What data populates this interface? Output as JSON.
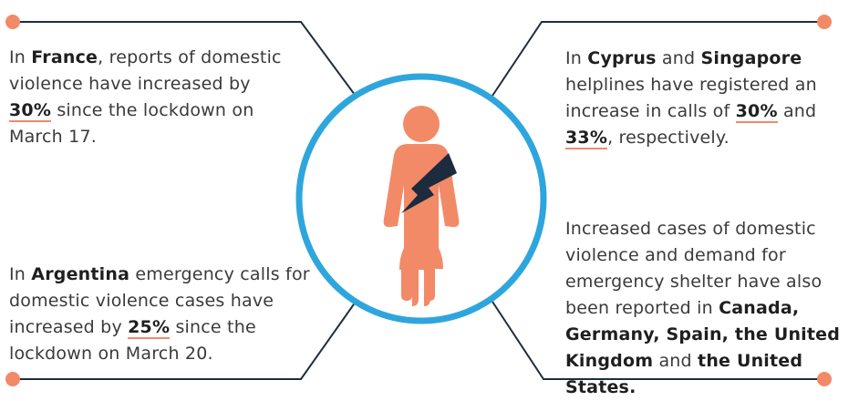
{
  "colors": {
    "accent": "#f28a67",
    "ring": "#2ea6dd",
    "bolt": "#1c2b3e",
    "line": "#1f2d3d"
  },
  "icons": {
    "center": "person-with-lightning-icon"
  },
  "top_left": {
    "p1": "In ",
    "country": "France",
    "p2": ", reports of domestic violence have increased by ",
    "pct": "30%",
    "p3": " since the lockdown on March 17."
  },
  "bottom_left": {
    "p1": "In ",
    "country": "Argentina",
    "p2": " emergency calls for domestic violence cases have increased by ",
    "pct": "25%",
    "p3": "  since the lockdown on March 20."
  },
  "top_right": {
    "p1": "In ",
    "country1": "Cyprus",
    "p2": " and ",
    "country2": "Singapore",
    "p3": " helplines have registered an increase in calls of ",
    "pct1": "30%",
    "p4": " and ",
    "pct2": "33%",
    "p5": ", respectively."
  },
  "bottom_right": {
    "p1": "Increased cases of domestic violence and demand for emergency shelter have also been reported in ",
    "countries1": "Canada, Germany, Spain, the United Kingdom",
    "p2": " and ",
    "countries2": "the United States."
  }
}
